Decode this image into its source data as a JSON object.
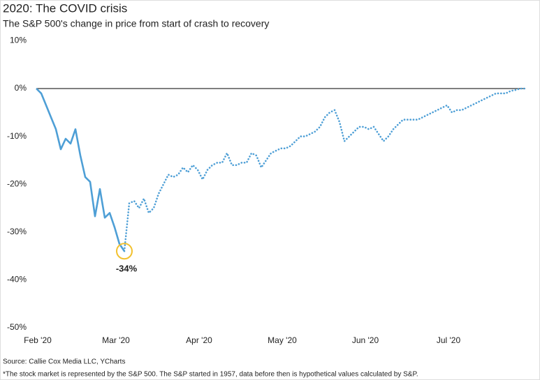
{
  "chart_data": {
    "type": "line",
    "title": "2020: The COVID crisis",
    "subtitle": "The S&P 500's change in price from start of crash to recovery",
    "source": "Source: Callie Cox Media LLC, YCharts",
    "footnote": "*The stock market is represented by the S&P 500. The S&P started in 1957, data before then is hypothetical values calculated by S&P.",
    "annotation": "-34%",
    "categories": [
      "Feb '20",
      null,
      null,
      null,
      null,
      null,
      null,
      null,
      null,
      null,
      null,
      null,
      null,
      null,
      null,
      null,
      "Mar '20",
      null,
      null,
      null,
      null,
      null,
      null,
      null,
      null,
      null,
      null,
      null,
      null,
      null,
      null,
      null,
      null,
      "Apr '20",
      null,
      null,
      null,
      null,
      null,
      null,
      null,
      null,
      null,
      null,
      null,
      null,
      null,
      null,
      null,
      null,
      "May '20",
      null,
      null,
      null,
      null,
      null,
      null,
      null,
      null,
      null,
      null,
      null,
      null,
      null,
      null,
      null,
      null,
      "Jun '20",
      null,
      null,
      null,
      null,
      null,
      null,
      null,
      null,
      null,
      null,
      null,
      null,
      null,
      null,
      null,
      null,
      "Jul '20",
      null,
      null,
      null,
      null,
      null,
      null,
      null,
      null,
      null,
      null,
      null,
      null,
      null,
      null,
      null,
      null
    ],
    "series": [
      {
        "color": "#4e9fd6",
        "style": "solid",
        "values": [
          0,
          -1,
          -3.5,
          -6,
          -8.5,
          -12.7,
          -10.5,
          -11.5,
          -8.5,
          -14,
          -18.5,
          -19.5,
          -26.7,
          -21,
          -27,
          -26,
          -29,
          -32.5,
          -34,
          null,
          null,
          null,
          null,
          null,
          null,
          null,
          null,
          null,
          null,
          null,
          null,
          null,
          null,
          null,
          null,
          null,
          null,
          null,
          null,
          null,
          null,
          null,
          null,
          null,
          null,
          null,
          null,
          null,
          null,
          null,
          null,
          null,
          null,
          null,
          null,
          null,
          null,
          null,
          null,
          null,
          null,
          null,
          null,
          null,
          null,
          null,
          null,
          null,
          null,
          null,
          null,
          null,
          null,
          null,
          null,
          null,
          null,
          null,
          null,
          null,
          null,
          null,
          null,
          null,
          null,
          null,
          null,
          null,
          null,
          null,
          null,
          null,
          null,
          null,
          null,
          null,
          null,
          null,
          null,
          null,
          null
        ]
      },
      {
        "color": "#4e9fd6",
        "style": "dotted",
        "values": [
          null,
          null,
          null,
          null,
          null,
          null,
          null,
          null,
          null,
          null,
          null,
          null,
          null,
          null,
          null,
          null,
          null,
          null,
          -34,
          -24,
          -23.5,
          -25,
          -23,
          -26,
          -25,
          -22,
          -20,
          -18,
          -18.5,
          -18,
          -16.5,
          -17.5,
          -16,
          -17,
          -19,
          -17,
          -16,
          -15.5,
          -15.5,
          -13.5,
          -16,
          -16,
          -15.5,
          -15.5,
          -13.5,
          -14,
          -16.5,
          -15,
          -13.5,
          -13,
          -12.5,
          -12.5,
          -12,
          -11,
          -10,
          -10,
          -9.5,
          -9,
          -8,
          -6,
          -5,
          -4.5,
          -7,
          -11,
          -10,
          -9,
          -8,
          -8,
          -8.5,
          -8,
          -9.5,
          -11,
          -10,
          -8.5,
          -7.5,
          -6.5,
          -6.5,
          -6.5,
          -6.5,
          -6,
          -5.5,
          -5,
          -4.5,
          -4,
          -3.5,
          -5,
          -4.5,
          -4.5,
          -4,
          -3.5,
          -3,
          -2.5,
          -2,
          -1.5,
          -1,
          -1,
          -1,
          -0.5,
          -0.3,
          0,
          0
        ]
      }
    ],
    "ylim": [
      -50,
      10
    ],
    "yticks": [
      {
        "value": -50,
        "label": "-50%"
      },
      {
        "value": -40,
        "label": "-40%"
      },
      {
        "value": -30,
        "label": "-30%"
      },
      {
        "value": -20,
        "label": "-20%"
      },
      {
        "value": -10,
        "label": "-10%"
      },
      {
        "value": 0,
        "label": "0%"
      },
      {
        "value": 10,
        "label": "10%"
      }
    ],
    "hline": 0,
    "highlight_color": "#f2c12e",
    "grid": false
  }
}
